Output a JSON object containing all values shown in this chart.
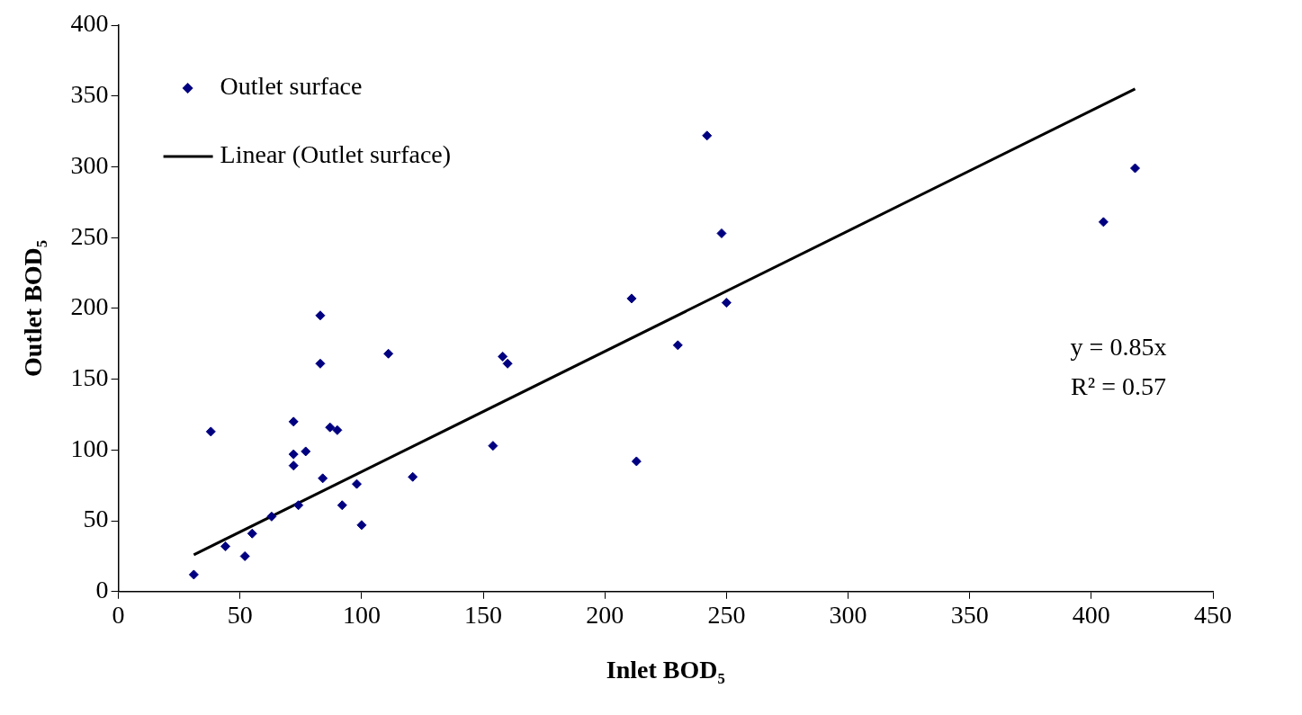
{
  "chart_data": {
    "type": "scatter",
    "xlabel": "Inlet BOD₅",
    "ylabel": "Outlet BOD₅",
    "xlim": [
      0,
      450
    ],
    "xticks": [
      0,
      50,
      100,
      150,
      200,
      250,
      300,
      350,
      400,
      450
    ],
    "ylim": [
      0,
      400
    ],
    "yticks": [
      0,
      50,
      100,
      150,
      200,
      250,
      300,
      350,
      400
    ],
    "grid": false,
    "legend": "top left",
    "series": [
      {
        "name": "Outlet surface",
        "marker": "diamond",
        "color": "#000080",
        "x": [
          31,
          38,
          44,
          52,
          55,
          63,
          72,
          72,
          72,
          74,
          77,
          83,
          83,
          84,
          87,
          90,
          92,
          98,
          100,
          111,
          121,
          154,
          158,
          160,
          211,
          213,
          230,
          242,
          248,
          250,
          405,
          418
        ],
        "values": [
          12,
          113,
          32,
          25,
          41,
          53,
          89,
          97,
          120,
          61,
          99,
          161,
          195,
          80,
          116,
          114,
          61,
          76,
          47,
          168,
          81,
          103,
          166,
          161,
          207,
          92,
          174,
          322,
          253,
          204,
          261,
          299
        ]
      },
      {
        "name": "Linear (Outlet surface)",
        "type": "line",
        "marker": "none",
        "line_style": "solid",
        "color": "#000000",
        "x": [
          31,
          418
        ],
        "values": [
          26,
          355
        ]
      }
    ],
    "annotations": [
      "y = 0.85x",
      "R² = 0.57"
    ]
  }
}
